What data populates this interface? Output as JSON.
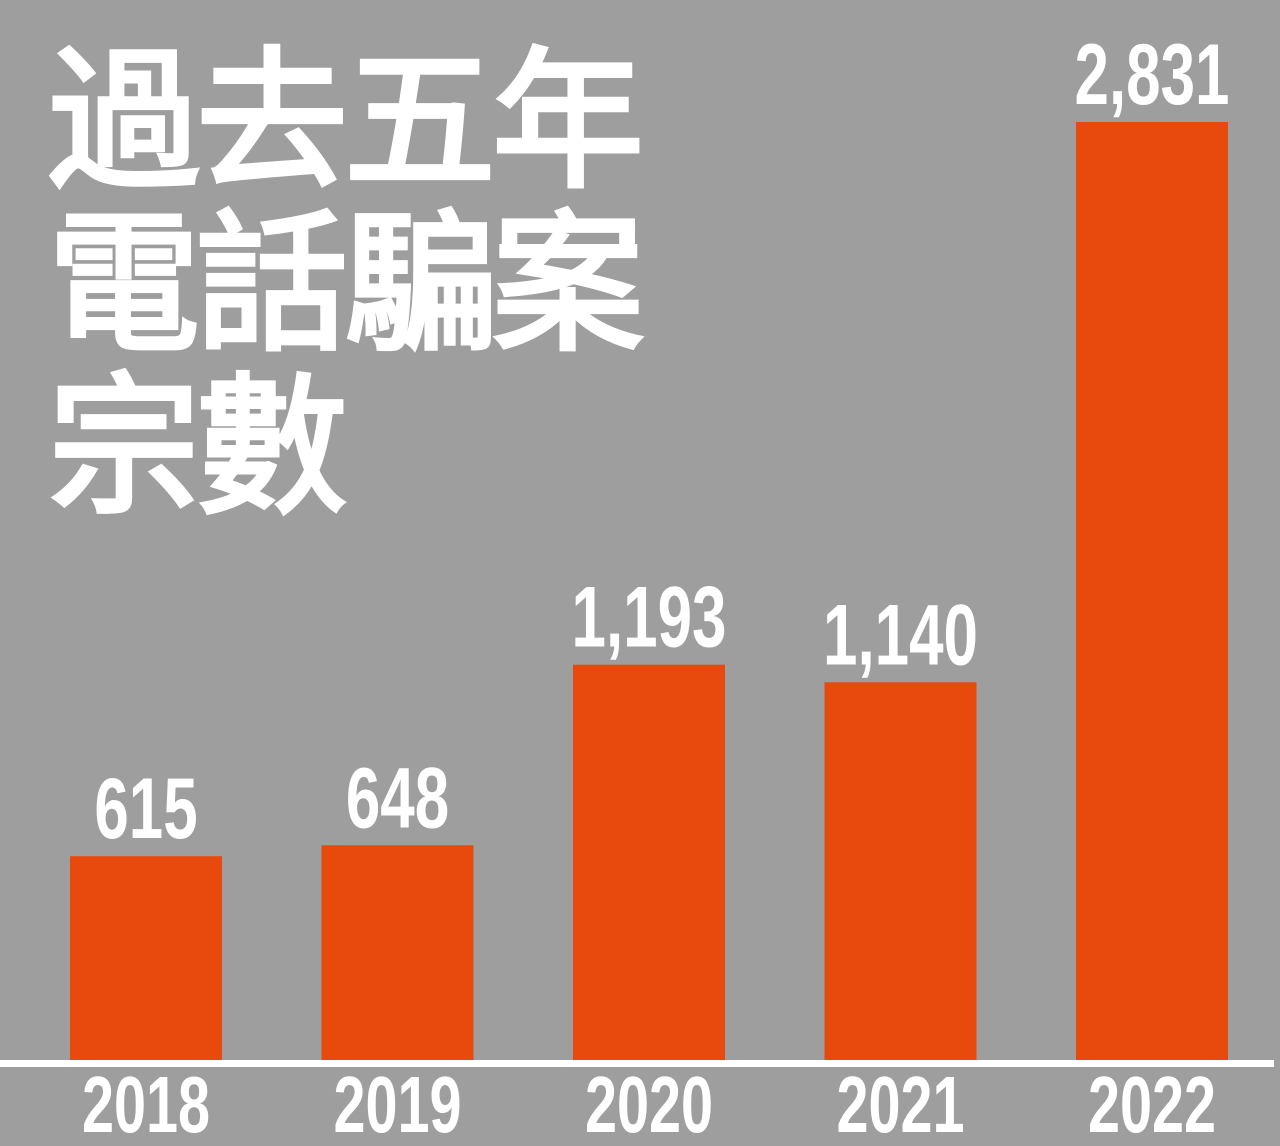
{
  "chart_data": {
    "type": "bar",
    "title": "過去五年電話騙案宗數",
    "categories": [
      "2018",
      "2019",
      "2020",
      "2021",
      "2022"
    ],
    "values": [
      615,
      648,
      1193,
      1140,
      2831
    ],
    "value_labels": [
      "615",
      "648",
      "1,193",
      "1,140",
      "2,831"
    ],
    "color": "#e8490c"
  }
}
